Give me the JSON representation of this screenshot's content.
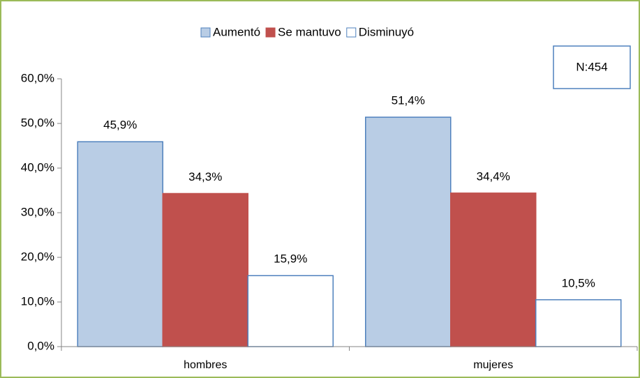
{
  "chart_data": {
    "type": "bar",
    "categories": [
      "hombres",
      "mujeres"
    ],
    "series": [
      {
        "name": "Aumentó",
        "color": "#b9cde5",
        "values": [
          45.9,
          51.4
        ],
        "value_labels": [
          "45,9%",
          "51,4%"
        ]
      },
      {
        "name": "Se mantuvo",
        "color": "#c0504d",
        "values": [
          34.3,
          34.4
        ],
        "value_labels": [
          "34,3%",
          "34,4%"
        ]
      },
      {
        "name": "Disminuyó",
        "color": "#ffffff",
        "values": [
          15.9,
          10.5
        ],
        "value_labels": [
          "15,9%",
          "10,5%"
        ]
      }
    ],
    "annotation": "N:454",
    "ylim": [
      0,
      60
    ],
    "yticks": [
      {
        "value": 0,
        "label": "0,0%"
      },
      {
        "value": 10,
        "label": "10,0%"
      },
      {
        "value": 20,
        "label": "20,0%"
      },
      {
        "value": 30,
        "label": "30,0%"
      },
      {
        "value": 40,
        "label": "40,0%"
      },
      {
        "value": 50,
        "label": "50,0%"
      },
      {
        "value": 60,
        "label": "60,0%"
      }
    ],
    "grid": false,
    "legend": "top"
  }
}
